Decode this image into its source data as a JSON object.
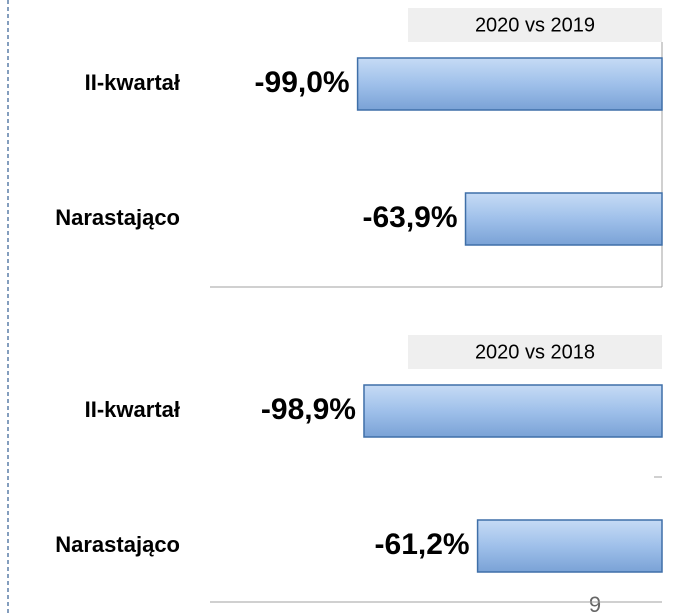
{
  "chart_data": [
    {
      "type": "bar",
      "orientation": "horizontal",
      "subtitle": "2020 vs 2019",
      "categories": [
        "II-kwartał",
        "Narastająco"
      ],
      "values": [
        -99.0,
        -63.9
      ],
      "value_labels": [
        "-99,0%",
        "-63,9%"
      ],
      "color": "#8fb4e3",
      "xlim": [
        -147,
        0
      ]
    },
    {
      "type": "bar",
      "orientation": "horizontal",
      "subtitle": "2020 vs 2018",
      "categories": [
        "II-kwartał",
        "Narastająco"
      ],
      "values": [
        -98.9,
        -61.2
      ],
      "value_labels": [
        "-98,9%",
        "-61,2%"
      ],
      "color": "#8fb4e3",
      "xlim": [
        -150,
        0
      ]
    }
  ],
  "page_number": "9"
}
